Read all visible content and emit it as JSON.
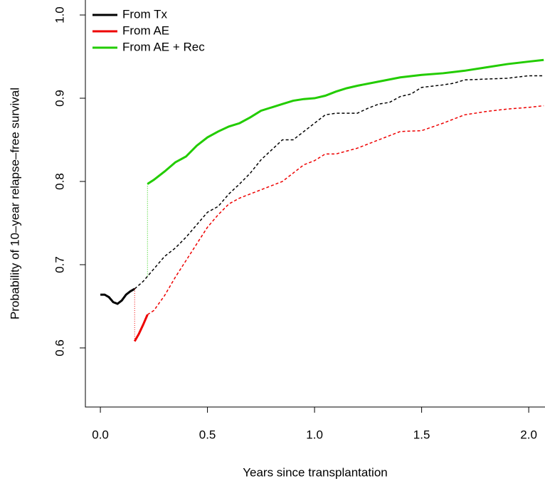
{
  "chart_data": {
    "type": "line",
    "x_label": "Years since transplantation",
    "y_label": "Probability of 10–year relapse–free survival",
    "xlim": [
      -0.07,
      2.076
    ],
    "ylim": [
      0.529,
      1.018
    ],
    "xticks": [
      {
        "value": 0,
        "label": "0.0"
      },
      0.5,
      {
        "value": 1,
        "label": "1.0"
      },
      1.5,
      {
        "value": 2,
        "label": "2.0"
      }
    ],
    "yticks": [
      0.6,
      0.7,
      0.8,
      0.9,
      {
        "value": 1,
        "label": "1.0"
      }
    ],
    "legend": "top-left",
    "connector": "dotted",
    "series": [
      {
        "name": "From Tx",
        "color": "#000000",
        "solid_range": [
          0,
          0.16
        ],
        "x": [
          0,
          0.02,
          0.04,
          0.06,
          0.08,
          0.1,
          0.12,
          0.14,
          0.16,
          0.2,
          0.25,
          0.3,
          0.35,
          0.4,
          0.45,
          0.5,
          0.55,
          0.6,
          0.65,
          0.7,
          0.75,
          0.8,
          0.85,
          0.9,
          0.95,
          1.0,
          1.05,
          1.1,
          1.2,
          1.25,
          1.3,
          1.35,
          1.4,
          1.45,
          1.5,
          1.6,
          1.65,
          1.7,
          1.8,
          1.9,
          2.0,
          2.07
        ],
        "values": [
          0.664,
          0.664,
          0.661,
          0.655,
          0.653,
          0.657,
          0.664,
          0.668,
          0.671,
          0.68,
          0.695,
          0.71,
          0.72,
          0.733,
          0.748,
          0.763,
          0.77,
          0.785,
          0.797,
          0.81,
          0.826,
          0.838,
          0.85,
          0.85,
          0.86,
          0.87,
          0.88,
          0.882,
          0.882,
          0.888,
          0.893,
          0.895,
          0.902,
          0.905,
          0.913,
          0.916,
          0.918,
          0.922,
          0.923,
          0.924,
          0.927,
          0.927
        ]
      },
      {
        "name": "From AE",
        "color": "#ee0000",
        "solid_range": [
          0.16,
          0.22
        ],
        "x": [
          0.16,
          0.18,
          0.2,
          0.22,
          0.25,
          0.3,
          0.35,
          0.4,
          0.45,
          0.5,
          0.55,
          0.6,
          0.65,
          0.7,
          0.75,
          0.8,
          0.85,
          0.9,
          0.95,
          1.0,
          1.05,
          1.1,
          1.2,
          1.3,
          1.35,
          1.4,
          1.5,
          1.6,
          1.7,
          1.8,
          1.9,
          2.0,
          2.07
        ],
        "values": [
          0.608,
          0.617,
          0.628,
          0.64,
          0.645,
          0.663,
          0.685,
          0.705,
          0.725,
          0.745,
          0.76,
          0.773,
          0.78,
          0.785,
          0.79,
          0.795,
          0.8,
          0.81,
          0.82,
          0.825,
          0.833,
          0.833,
          0.84,
          0.85,
          0.855,
          0.86,
          0.861,
          0.87,
          0.88,
          0.884,
          0.887,
          0.889,
          0.891
        ]
      },
      {
        "name": "From AE + Rec",
        "color": "#22cc00",
        "solid_range": [
          0.22,
          2.07
        ],
        "x": [
          0.22,
          0.25,
          0.3,
          0.35,
          0.4,
          0.45,
          0.5,
          0.55,
          0.6,
          0.65,
          0.7,
          0.75,
          0.8,
          0.85,
          0.9,
          0.95,
          1.0,
          1.05,
          1.1,
          1.15,
          1.2,
          1.3,
          1.4,
          1.5,
          1.6,
          1.7,
          1.8,
          1.9,
          2.0,
          2.07
        ],
        "values": [
          0.797,
          0.802,
          0.812,
          0.823,
          0.83,
          0.843,
          0.853,
          0.86,
          0.866,
          0.87,
          0.877,
          0.885,
          0.889,
          0.893,
          0.897,
          0.899,
          0.9,
          0.903,
          0.908,
          0.912,
          0.915,
          0.92,
          0.925,
          0.928,
          0.93,
          0.933,
          0.937,
          0.941,
          0.944,
          0.946
        ]
      }
    ]
  }
}
